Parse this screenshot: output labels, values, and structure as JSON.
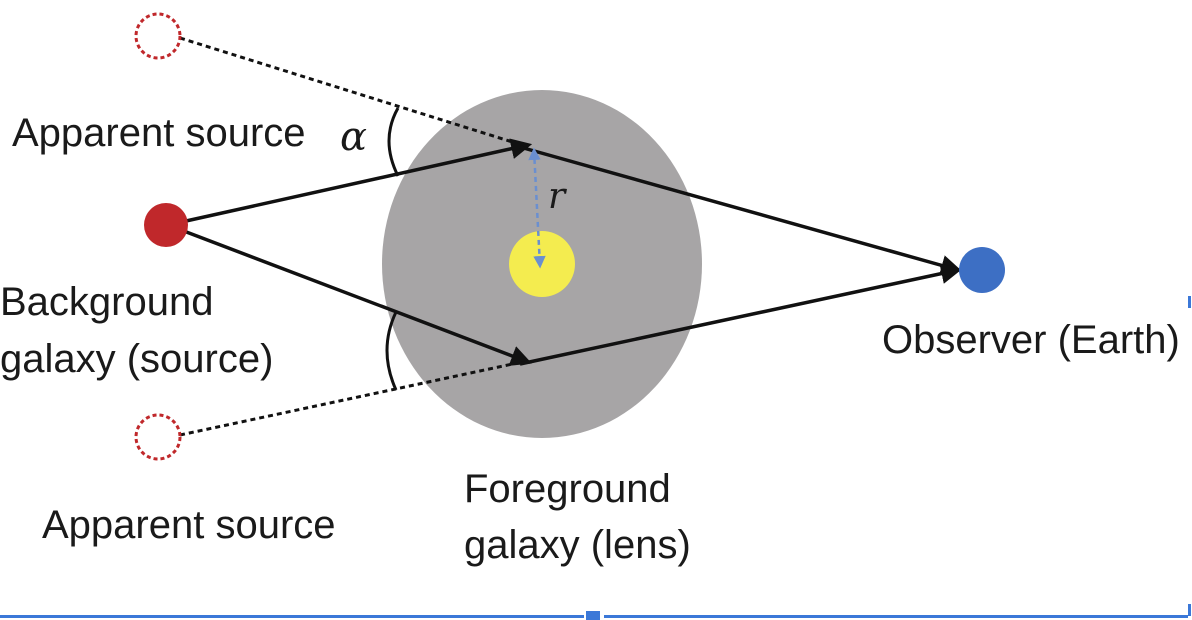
{
  "labels": {
    "apparent_source_top": "Apparent source",
    "apparent_source_bottom": "Apparent source",
    "background_galaxy_line1": "Background",
    "background_galaxy_line2": "galaxy (source)",
    "foreground_galaxy_line1": "Foreground",
    "foreground_galaxy_line2": "galaxy (lens)",
    "observer": "Observer (Earth)",
    "alpha_symbol": "α",
    "r_symbol": "r"
  },
  "colors": {
    "source": "#c0282b",
    "observer": "#3d6fc4",
    "lens_galaxy": "#a7a5a6",
    "lens_core": "#f4ec4f",
    "apparent_source_outline": "#c0282b",
    "radius_line": "#6a8fd0",
    "frame_accent": "#3b78d8"
  }
}
